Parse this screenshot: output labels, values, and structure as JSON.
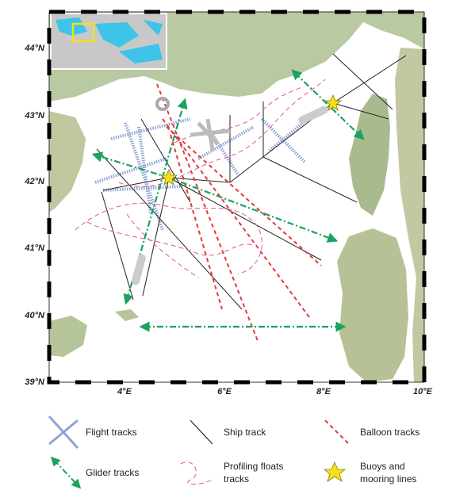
{
  "map": {
    "lat_labels": [
      "44°N",
      "43°N",
      "42°N",
      "41°N",
      "40°N",
      "39°N"
    ],
    "lon_labels": [
      "4°E",
      "6°E",
      "8°E",
      "10°E"
    ]
  },
  "legend": {
    "flight": "Flight tracks",
    "ship": "Ship track",
    "balloon": "Balloon tracks",
    "glider": "Glider tracks",
    "floats": [
      "Profiling floats",
      "tracks"
    ],
    "buoys": [
      "Buoys and",
      "mooring lines"
    ]
  }
}
